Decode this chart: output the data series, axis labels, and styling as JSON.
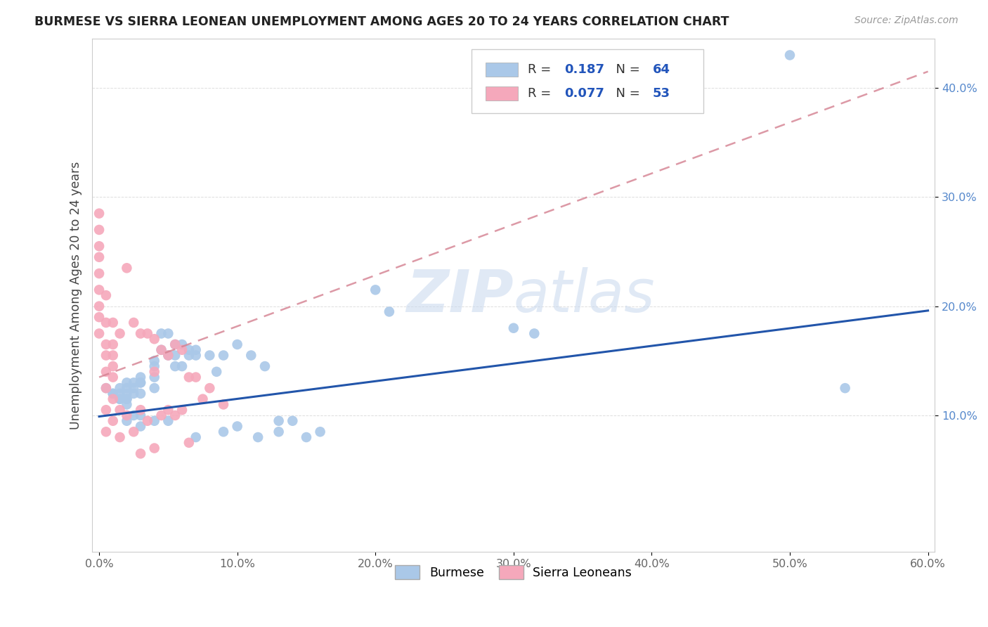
{
  "title": "BURMESE VS SIERRA LEONEAN UNEMPLOYMENT AMONG AGES 20 TO 24 YEARS CORRELATION CHART",
  "source": "Source: ZipAtlas.com",
  "ylabel": "Unemployment Among Ages 20 to 24 years",
  "xlim": [
    -0.005,
    0.605
  ],
  "ylim": [
    -0.025,
    0.445
  ],
  "x_ticks": [
    0.0,
    0.1,
    0.2,
    0.3,
    0.4,
    0.5,
    0.6
  ],
  "x_tick_labels": [
    "0.0%",
    "10.0%",
    "20.0%",
    "30.0%",
    "40.0%",
    "50.0%",
    "60.0%"
  ],
  "y_ticks": [
    0.1,
    0.2,
    0.3,
    0.4
  ],
  "y_tick_labels": [
    "10.0%",
    "20.0%",
    "30.0%",
    "40.0%"
  ],
  "burmese_color": "#aac8e8",
  "sierra_color": "#f5a8bb",
  "burmese_line_color": "#2255aa",
  "sierra_line_color": "#d48090",
  "legend_R1": "0.187",
  "legend_N1": "64",
  "legend_R2": "0.077",
  "legend_N2": "53",
  "background_color": "#ffffff",
  "burmese_x": [
    0.005,
    0.01,
    0.01,
    0.015,
    0.015,
    0.015,
    0.015,
    0.02,
    0.02,
    0.02,
    0.02,
    0.02,
    0.02,
    0.02,
    0.025,
    0.025,
    0.025,
    0.025,
    0.03,
    0.03,
    0.03,
    0.03,
    0.03,
    0.03,
    0.04,
    0.04,
    0.04,
    0.04,
    0.04,
    0.045,
    0.045,
    0.05,
    0.05,
    0.05,
    0.055,
    0.055,
    0.055,
    0.06,
    0.06,
    0.065,
    0.065,
    0.07,
    0.07,
    0.07,
    0.08,
    0.085,
    0.09,
    0.09,
    0.1,
    0.1,
    0.11,
    0.115,
    0.12,
    0.13,
    0.13,
    0.14,
    0.15,
    0.16,
    0.2,
    0.21,
    0.3,
    0.315,
    0.5,
    0.54
  ],
  "burmese_y": [
    0.125,
    0.12,
    0.12,
    0.125,
    0.12,
    0.115,
    0.115,
    0.13,
    0.125,
    0.12,
    0.115,
    0.115,
    0.11,
    0.095,
    0.13,
    0.125,
    0.12,
    0.1,
    0.135,
    0.13,
    0.13,
    0.12,
    0.1,
    0.09,
    0.15,
    0.145,
    0.135,
    0.125,
    0.095,
    0.175,
    0.16,
    0.175,
    0.155,
    0.095,
    0.165,
    0.155,
    0.145,
    0.165,
    0.145,
    0.16,
    0.155,
    0.16,
    0.155,
    0.08,
    0.155,
    0.14,
    0.155,
    0.085,
    0.165,
    0.09,
    0.155,
    0.08,
    0.145,
    0.095,
    0.085,
    0.095,
    0.08,
    0.085,
    0.215,
    0.195,
    0.18,
    0.175,
    0.43,
    0.125
  ],
  "sierra_x": [
    0.0,
    0.0,
    0.0,
    0.0,
    0.0,
    0.0,
    0.0,
    0.0,
    0.0,
    0.005,
    0.005,
    0.005,
    0.005,
    0.005,
    0.005,
    0.005,
    0.005,
    0.01,
    0.01,
    0.01,
    0.01,
    0.01,
    0.01,
    0.01,
    0.015,
    0.015,
    0.015,
    0.02,
    0.02,
    0.025,
    0.025,
    0.03,
    0.03,
    0.03,
    0.035,
    0.035,
    0.04,
    0.04,
    0.04,
    0.045,
    0.045,
    0.05,
    0.05,
    0.055,
    0.055,
    0.06,
    0.06,
    0.065,
    0.065,
    0.07,
    0.075,
    0.08,
    0.09
  ],
  "sierra_y": [
    0.285,
    0.27,
    0.255,
    0.245,
    0.23,
    0.215,
    0.2,
    0.19,
    0.175,
    0.21,
    0.185,
    0.165,
    0.155,
    0.14,
    0.125,
    0.105,
    0.085,
    0.185,
    0.165,
    0.155,
    0.145,
    0.135,
    0.115,
    0.095,
    0.175,
    0.105,
    0.08,
    0.235,
    0.1,
    0.185,
    0.085,
    0.175,
    0.105,
    0.065,
    0.175,
    0.095,
    0.17,
    0.14,
    0.07,
    0.16,
    0.1,
    0.155,
    0.105,
    0.165,
    0.1,
    0.16,
    0.105,
    0.135,
    0.075,
    0.135,
    0.115,
    0.125,
    0.11
  ],
  "burmese_line_x0": 0.0,
  "burmese_line_x1": 0.6,
  "burmese_line_y0": 0.099,
  "burmese_line_y1": 0.196,
  "sierra_line_x0": 0.0,
  "sierra_line_x1": 0.6,
  "sierra_line_y0": 0.135,
  "sierra_line_y1": 0.415
}
